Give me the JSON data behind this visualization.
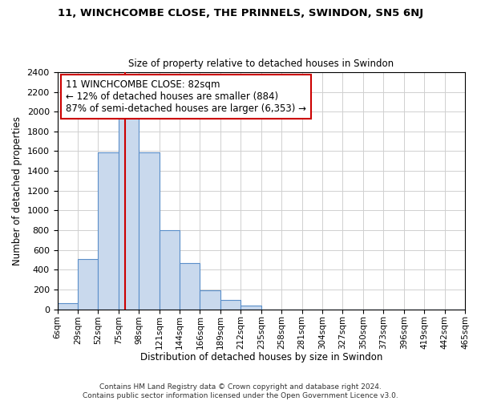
{
  "title": "11, WINCHCOMBE CLOSE, THE PRINNELS, SWINDON, SN5 6NJ",
  "subtitle": "Size of property relative to detached houses in Swindon",
  "xlabel": "Distribution of detached houses by size in Swindon",
  "ylabel": "Number of detached properties",
  "bin_labels": [
    "6sqm",
    "29sqm",
    "52sqm",
    "75sqm",
    "98sqm",
    "121sqm",
    "144sqm",
    "166sqm",
    "189sqm",
    "212sqm",
    "235sqm",
    "258sqm",
    "281sqm",
    "304sqm",
    "327sqm",
    "350sqm",
    "373sqm",
    "396sqm",
    "419sqm",
    "442sqm",
    "465sqm"
  ],
  "bar_values": [
    60,
    510,
    1590,
    1950,
    1590,
    800,
    470,
    190,
    95,
    35,
    0,
    0,
    0,
    0,
    0,
    0,
    0,
    0,
    0,
    0
  ],
  "bar_color": "#c9d9ed",
  "bar_edge_color": "#5b8fc9",
  "vline_x_index": 3.3,
  "vline_color": "#cc0000",
  "ylim": [
    0,
    2400
  ],
  "yticks": [
    0,
    200,
    400,
    600,
    800,
    1000,
    1200,
    1400,
    1600,
    1800,
    2000,
    2200,
    2400
  ],
  "annotation_title": "11 WINCHCOMBE CLOSE: 82sqm",
  "annotation_line1": "← 12% of detached houses are smaller (884)",
  "annotation_line2": "87% of semi-detached houses are larger (6,353) →",
  "annotation_box_color": "#ffffff",
  "annotation_box_edge": "#cc0000",
  "footer1": "Contains HM Land Registry data © Crown copyright and database right 2024.",
  "footer2": "Contains public sector information licensed under the Open Government Licence v3.0.",
  "background_color": "#ffffff",
  "grid_color": "#d0d0d0"
}
